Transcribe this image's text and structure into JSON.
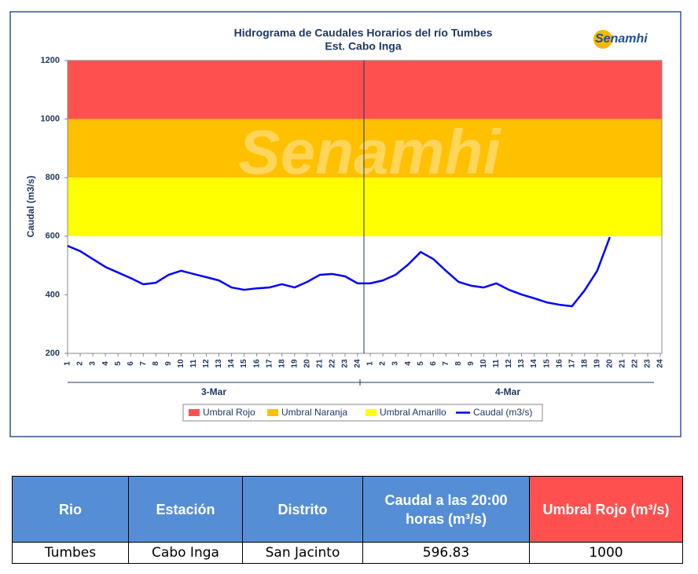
{
  "chart_data": {
    "type": "line",
    "title": "Hidrograma de Caudales Horarios del río Tumbes",
    "subtitle": "Est. Cabo Inga",
    "logo": "Senamhi",
    "ylabel": "Caudal  (m3/s)",
    "ylim": [
      200,
      1200
    ],
    "yticks": [
      200,
      400,
      600,
      800,
      1000,
      1200
    ],
    "grid": false,
    "categories": [
      "1",
      "2",
      "3",
      "4",
      "5",
      "6",
      "7",
      "8",
      "9",
      "10",
      "11",
      "12",
      "13",
      "14",
      "15",
      "16",
      "17",
      "18",
      "19",
      "20",
      "21",
      "22",
      "23",
      "24",
      "1",
      "2",
      "3",
      "4",
      "5",
      "6",
      "7",
      "8",
      "9",
      "10",
      "11",
      "12",
      "13",
      "14",
      "15",
      "16",
      "17",
      "18",
      "19",
      "20",
      "21",
      "22",
      "23",
      "24"
    ],
    "groups": [
      "3-Mar",
      "4-Mar"
    ],
    "bands": [
      {
        "name": "Umbral Rojo",
        "color": "#ff5050",
        "from": 1000,
        "to": 1200
      },
      {
        "name": "Umbral Naranja",
        "color": "#ffc000",
        "from": 800,
        "to": 1000
      },
      {
        "name": "Umbral Amarillo",
        "color": "#ffff00",
        "from": 600,
        "to": 800
      }
    ],
    "series": [
      {
        "name": "Caudal (m3/s)",
        "color": "#0000ff",
        "values": [
          567,
          549,
          522,
          495,
          476,
          457,
          436,
          441,
          468,
          482,
          471,
          460,
          449,
          425,
          417,
          422,
          425,
          436,
          425,
          444,
          468,
          471,
          463,
          439,
          439,
          449,
          468,
          503,
          546,
          522,
          482,
          444,
          431,
          425,
          439,
          417,
          401,
          388,
          374,
          366,
          361,
          415,
          482,
          596.83,
          null,
          null,
          null,
          null
        ]
      }
    ]
  },
  "table": {
    "header": [
      "Rio",
      "Estación",
      "Distrito",
      "Caudal a las 20:00 horas (m³/s)",
      "Umbral Rojo (m³/s)"
    ],
    "rows": [
      [
        "Tumbes",
        "Cabo Inga",
        "San Jacinto",
        "596.83",
        "1000"
      ]
    ]
  }
}
